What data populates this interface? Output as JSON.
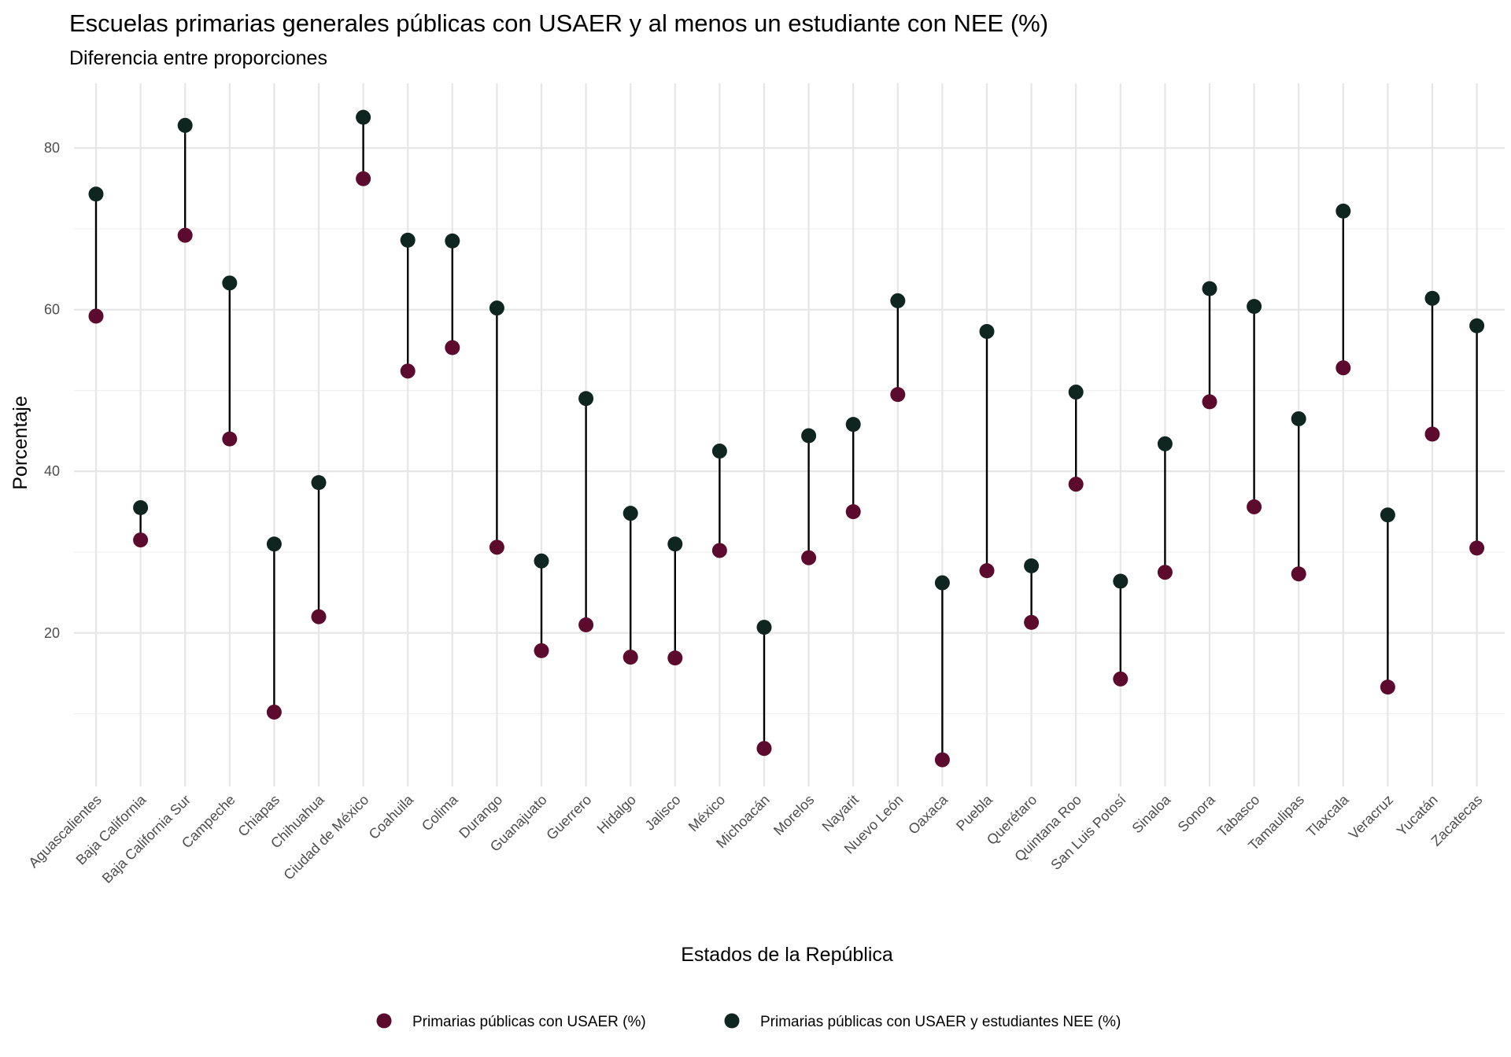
{
  "chart_data": {
    "type": "dumbbell",
    "title": "Escuelas primarias generales públicas con USAER y al menos un estudiante con NEE (%)",
    "subtitle": "Diferencia entre proporciones",
    "xlabel": "Estados de la República",
    "ylabel": "Porcentaje",
    "ylim": [
      1,
      88
    ],
    "yticks": [
      20,
      40,
      60,
      80
    ],
    "grid": true,
    "legend_position": "bottom",
    "categories": [
      "Aguascalientes",
      "Baja California",
      "Baja California Sur",
      "Campeche",
      "Chiapas",
      "Chihuahua",
      "Ciudad de México",
      "Coahuila",
      "Colima",
      "Durango",
      "Guanajuato",
      "Guerrero",
      "Hidalgo",
      "Jalisco",
      "México",
      "Michoacán",
      "Morelos",
      "Nayarit",
      "Nuevo León",
      "Oaxaca",
      "Puebla",
      "Querétaro",
      "Quintana Roo",
      "San Luis Potosí",
      "Sinaloa",
      "Sonora",
      "Tabasco",
      "Tamaulipas",
      "Tlaxcala",
      "Veracruz",
      "Yucatán",
      "Zacatecas"
    ],
    "series": [
      {
        "name": "Primarias públicas con USAER (%)",
        "color": "#5c0b2e",
        "values": [
          59.2,
          31.5,
          69.2,
          44.0,
          10.2,
          22.0,
          76.2,
          52.4,
          55.3,
          30.6,
          17.8,
          21.0,
          17.0,
          16.9,
          30.2,
          5.7,
          29.3,
          35.0,
          49.5,
          4.3,
          27.7,
          21.3,
          38.4,
          14.3,
          27.5,
          48.6,
          35.6,
          27.3,
          52.8,
          13.3,
          44.6,
          30.5
        ]
      },
      {
        "name": "Primarias públicas con USAER y estudiantes NEE (%)",
        "color": "#0f2620",
        "values": [
          74.3,
          35.5,
          82.8,
          63.3,
          31.0,
          38.6,
          83.8,
          68.6,
          68.5,
          60.2,
          28.9,
          49.0,
          34.8,
          31.0,
          42.5,
          20.7,
          44.4,
          45.8,
          61.1,
          26.2,
          57.3,
          28.3,
          49.8,
          26.4,
          43.4,
          62.6,
          60.4,
          46.5,
          72.2,
          34.6,
          61.4,
          58.0
        ]
      }
    ],
    "segment_color": "#000000"
  }
}
